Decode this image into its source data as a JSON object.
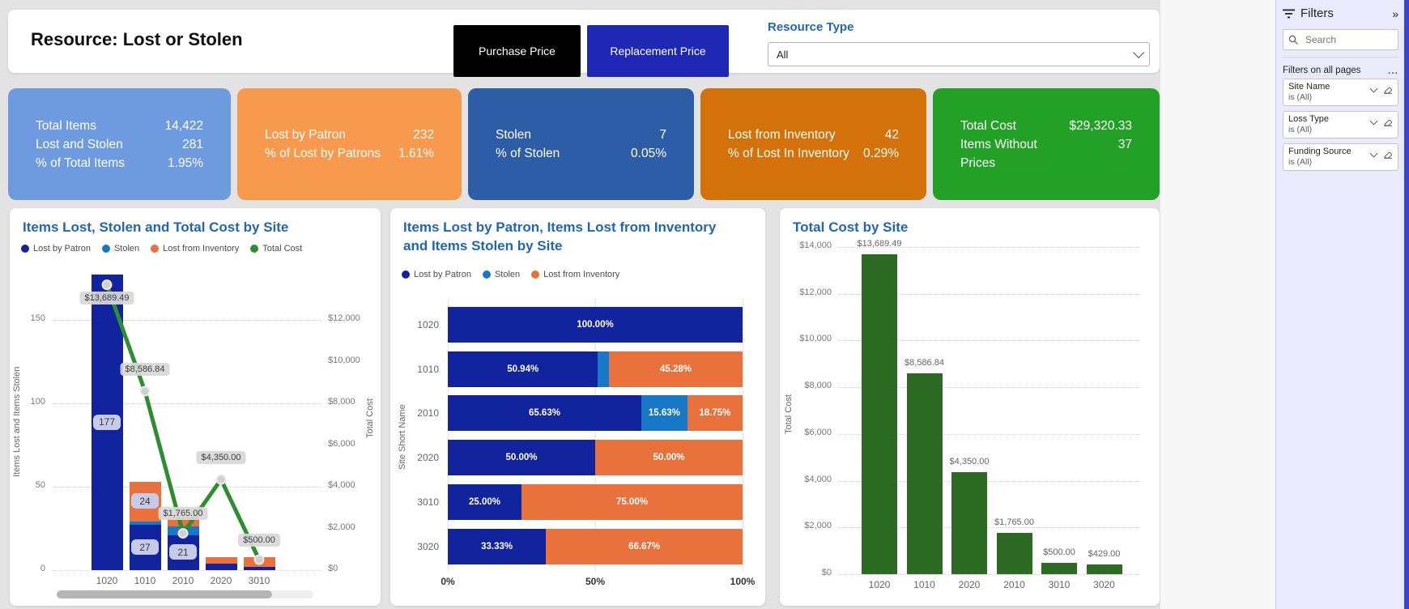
{
  "header": {
    "title": "Resource: Lost or Stolen",
    "buttons": [
      {
        "label": "Purchase Price",
        "bg": "#000000",
        "fg": "#ffffff"
      },
      {
        "label": "Replacement Price",
        "bg": "#1F27B5",
        "fg": "#ffffff"
      }
    ],
    "slicer": {
      "label": "Resource Type",
      "value": "All"
    }
  },
  "kpi_cards": [
    {
      "bg": "#6E9AE0",
      "rows": [
        {
          "label": "Total Items",
          "value": "14,422"
        },
        {
          "label": "Lost and Stolen",
          "value": "281"
        },
        {
          "label": "% of Total Items",
          "value": "1.95%"
        }
      ]
    },
    {
      "bg": "#F89A4D",
      "rows": [
        {
          "label": "Lost by Patron",
          "value": "232"
        },
        {
          "label": "% of Lost by Patrons",
          "value": "1.61%"
        }
      ]
    },
    {
      "bg": "#2D5DA6",
      "rows": [
        {
          "label": "Stolen",
          "value": "7"
        },
        {
          "label": "% of Stolen",
          "value": "0.05%"
        }
      ]
    },
    {
      "bg": "#D3720B",
      "rows": [
        {
          "label": "Lost from Inventory",
          "value": "42"
        },
        {
          "label": "% of Lost In Inventory",
          "value": "0.29%"
        }
      ]
    },
    {
      "bg": "#23A127",
      "rows": [
        {
          "label": "Total Cost",
          "value": "$29,320.33"
        },
        {
          "label": "Items Without Prices",
          "value": "37"
        }
      ]
    }
  ],
  "colors": {
    "navy": "#12239E",
    "stolen_blue": "#1778C8",
    "orange": "#E8713C",
    "line_green": "#2E8D2E",
    "bar_green": "#2D6A24",
    "title_blue": "#2066B2"
  },
  "chart_data": [
    {
      "type": "combo-stacked-bar-line",
      "title": "Items Lost, Stolen and Total Cost by Site",
      "categories": [
        "1020",
        "1010",
        "2010",
        "2020",
        "3010"
      ],
      "bar_series": [
        {
          "name": "Lost by Patron",
          "color": "navy",
          "values": [
            177,
            27,
            21,
            4,
            2
          ]
        },
        {
          "name": "Stolen",
          "color": "stolen_blue",
          "values": [
            0,
            2,
            5,
            0,
            0
          ]
        },
        {
          "name": "Lost from Inventory",
          "color": "orange",
          "values": [
            0,
            24,
            6,
            4,
            6
          ]
        }
      ],
      "line_series": {
        "name": "Total Cost",
        "color": "line_green",
        "values": [
          13689.49,
          8586.84,
          1765.0,
          4350.0,
          500.0
        ]
      },
      "left_axis": {
        "label": "Items Lost and Items Stolen",
        "ticks": [
          0,
          50,
          100,
          150
        ],
        "max": 178
      },
      "right_axis": {
        "label": "Total Cost",
        "ticks": [
          0,
          2000,
          4000,
          6000,
          8000,
          10000,
          12000
        ],
        "max": 14260
      },
      "legend_position": "top",
      "grid": true,
      "has_scrollbar": true
    },
    {
      "type": "stacked-bar-100",
      "title": "Items Lost by Patron, Items Lost from Inventory and Items Stolen by Site",
      "categories": [
        "1020",
        "1010",
        "2010",
        "2020",
        "3010",
        "3020"
      ],
      "series": [
        {
          "name": "Lost by Patron",
          "color": "navy",
          "values": [
            100,
            50.94,
            65.63,
            50.0,
            25.0,
            33.33
          ]
        },
        {
          "name": "Stolen",
          "color": "stolen_blue",
          "values": [
            0,
            3.77,
            15.63,
            0,
            0,
            0
          ]
        },
        {
          "name": "Lost from Inventory",
          "color": "orange",
          "values": [
            0,
            45.28,
            18.75,
            50.0,
            75.0,
            66.67
          ]
        }
      ],
      "x_ticks": [
        "0%",
        "50%",
        "100%"
      ],
      "y_axis_label": "Site Short Name",
      "legend_position": "top",
      "grid": true
    },
    {
      "type": "bar",
      "title": "Total Cost by Site",
      "categories": [
        "1020",
        "1010",
        "2020",
        "2010",
        "3010",
        "3020"
      ],
      "values": [
        13689.49,
        8586.84,
        4350.0,
        1765.0,
        500.0,
        429.0
      ],
      "ylabel": "Total Cost",
      "y_ticks": [
        0,
        2000,
        4000,
        6000,
        8000,
        10000,
        12000,
        14000
      ],
      "ylim": [
        0,
        14000
      ],
      "bar_color": "bar_green",
      "grid": true
    }
  ],
  "filters_panel": {
    "title": "Filters",
    "search_placeholder": "Search",
    "section_title": "Filters on all pages",
    "more_options": "...",
    "filters": [
      {
        "name": "Site Name",
        "condition": "is (All)"
      },
      {
        "name": "Loss Type",
        "condition": "is (All)"
      },
      {
        "name": "Funding Source",
        "condition": "is (All)"
      }
    ]
  }
}
